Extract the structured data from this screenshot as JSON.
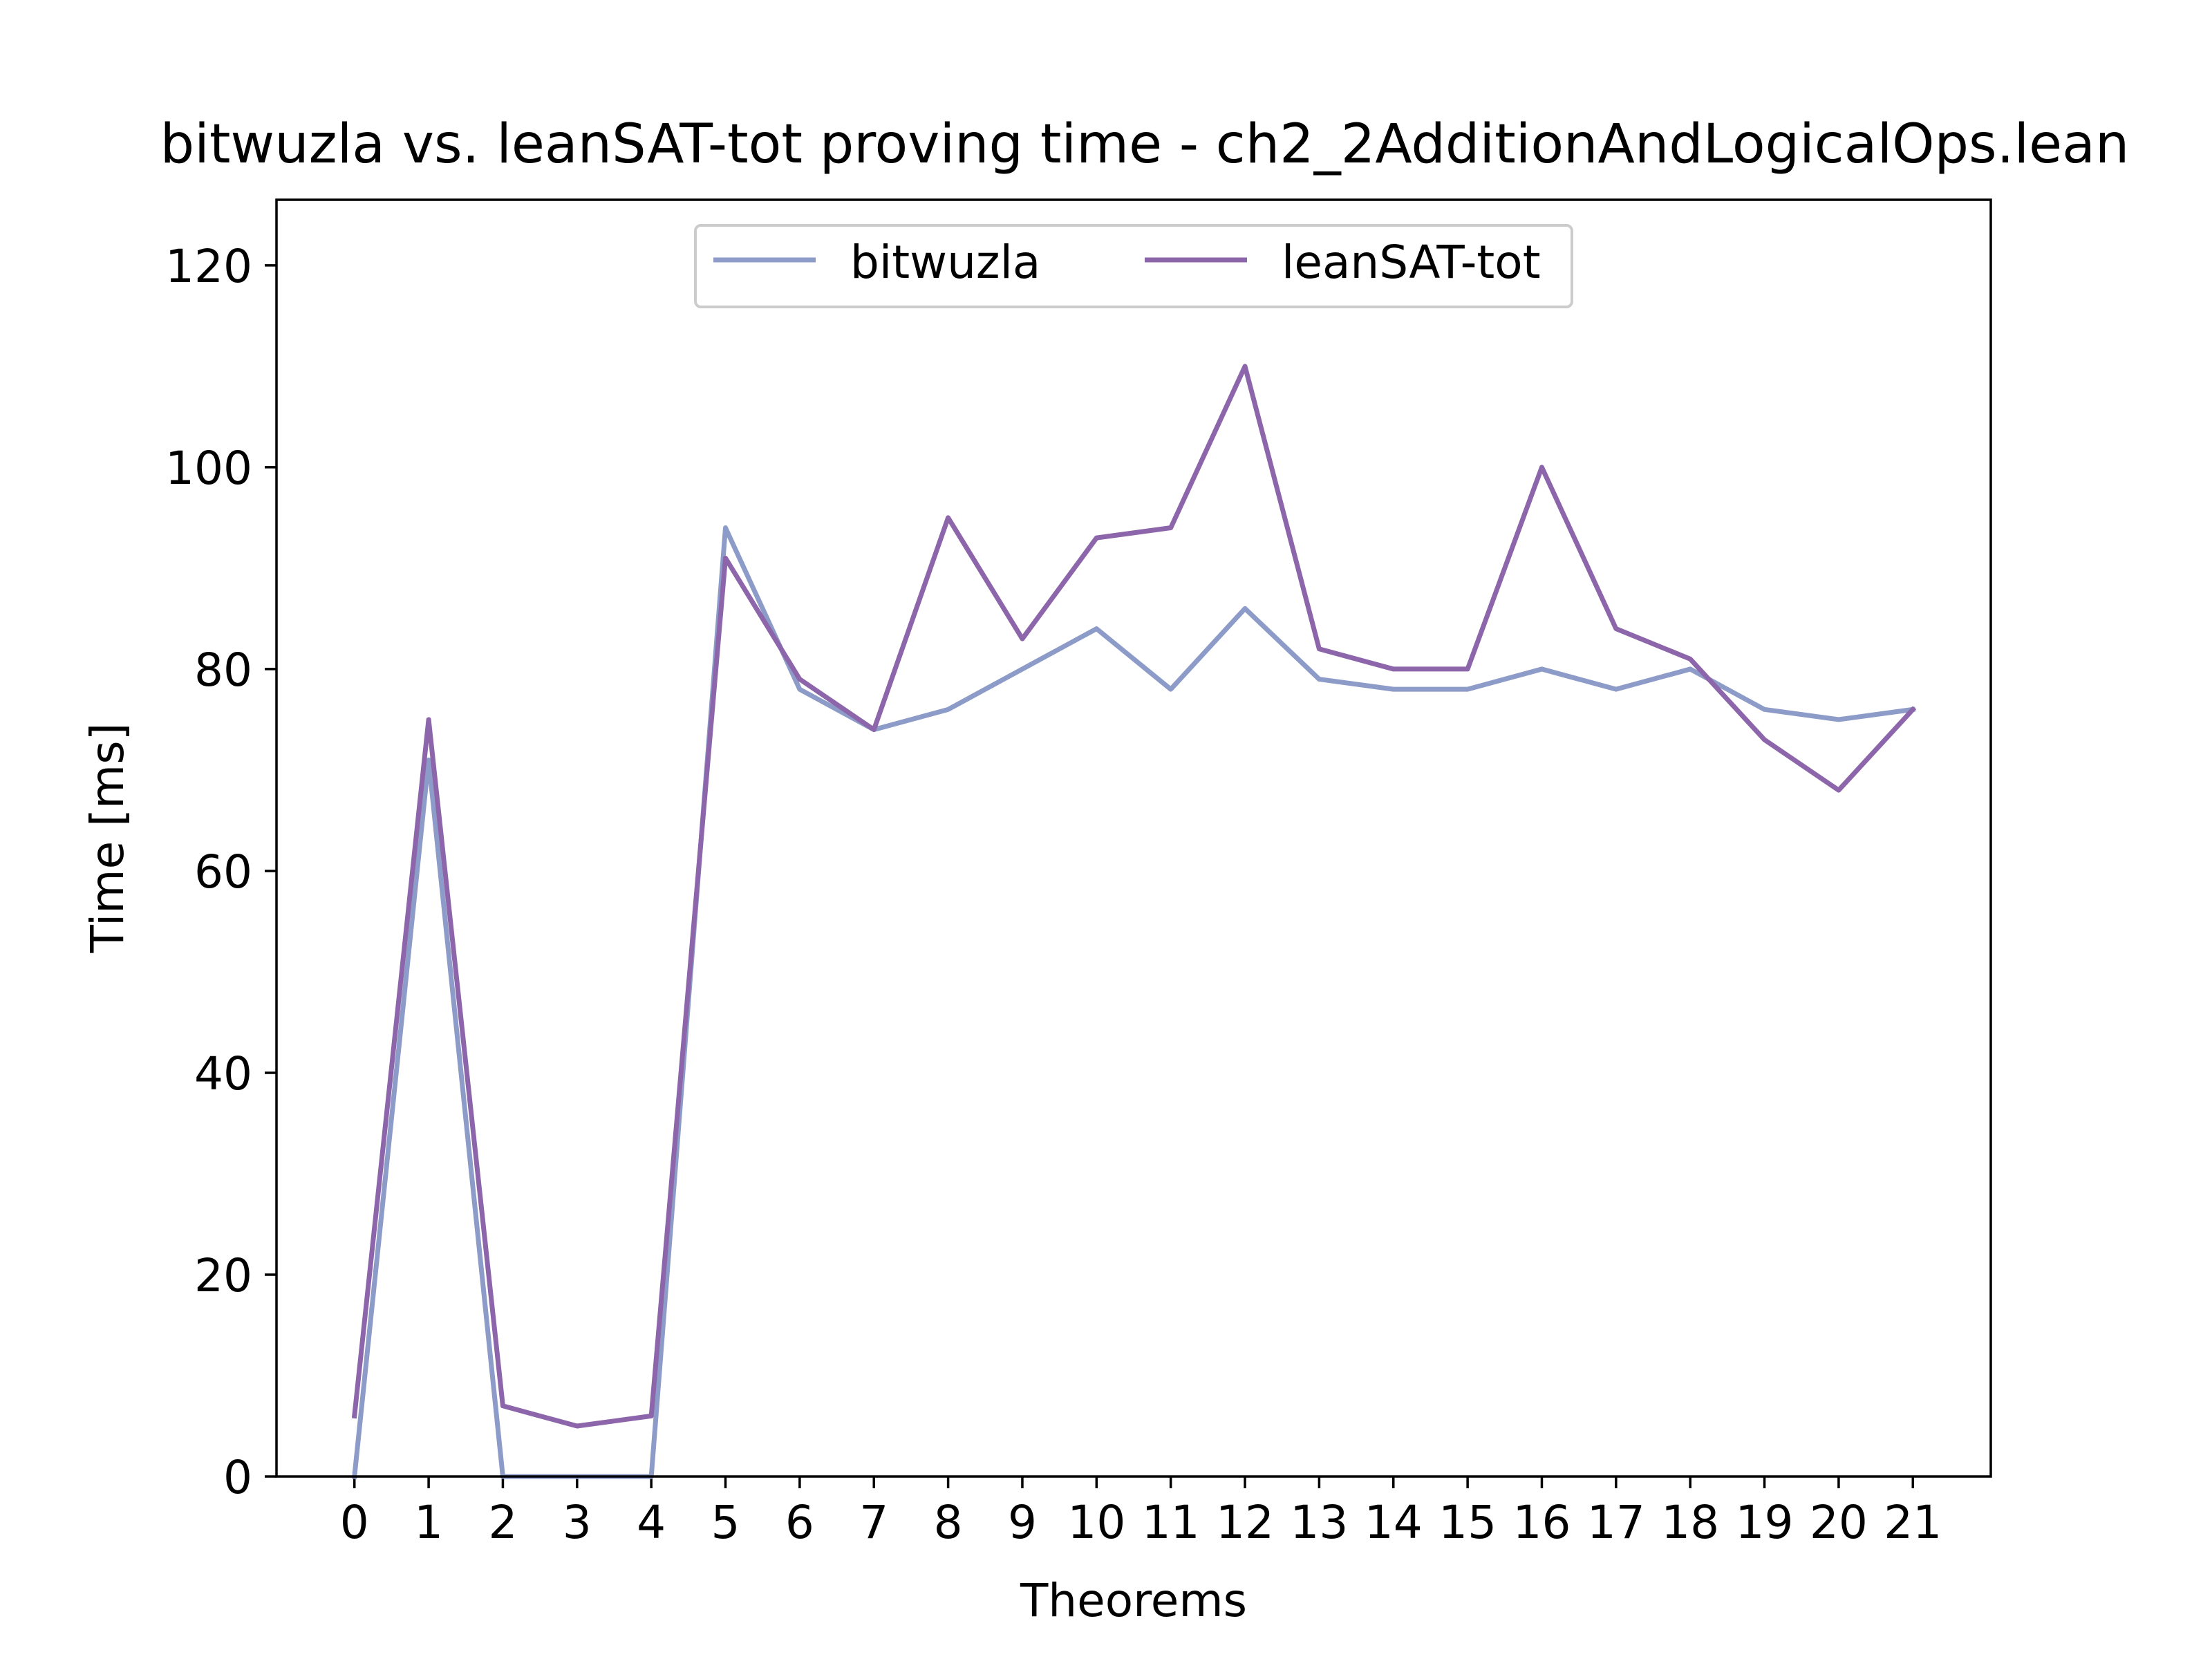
{
  "chart_data": {
    "type": "line",
    "title": "bitwuzla vs. leanSAT-tot proving time - ch2_2AdditionAndLogicalOps.lean",
    "xlabel": "Theorems",
    "ylabel": "Time [ms]",
    "x": [
      0,
      1,
      2,
      3,
      4,
      5,
      6,
      7,
      8,
      9,
      10,
      11,
      12,
      13,
      14,
      15,
      16,
      17,
      18,
      19,
      20,
      21
    ],
    "xlim": [
      -1.05,
      22.05
    ],
    "ylim": [
      0,
      126.5
    ],
    "yticks": [
      0,
      20,
      40,
      60,
      80,
      100,
      120
    ],
    "grid": false,
    "legend_position": "upper center",
    "series": [
      {
        "name": "bitwuzla",
        "color": "#8c9bc7",
        "values": [
          0,
          71,
          0,
          0,
          0,
          94,
          78,
          74,
          76,
          80,
          84,
          78,
          86,
          79,
          78,
          78,
          80,
          78,
          80,
          76,
          75,
          76
        ]
      },
      {
        "name": "leanSAT-tot",
        "color": "#8c65aa",
        "values": [
          6,
          75,
          7,
          5,
          6,
          91,
          79,
          74,
          95,
          83,
          93,
          94,
          110,
          82,
          80,
          80,
          100,
          84,
          81,
          73,
          68,
          76
        ]
      }
    ]
  }
}
